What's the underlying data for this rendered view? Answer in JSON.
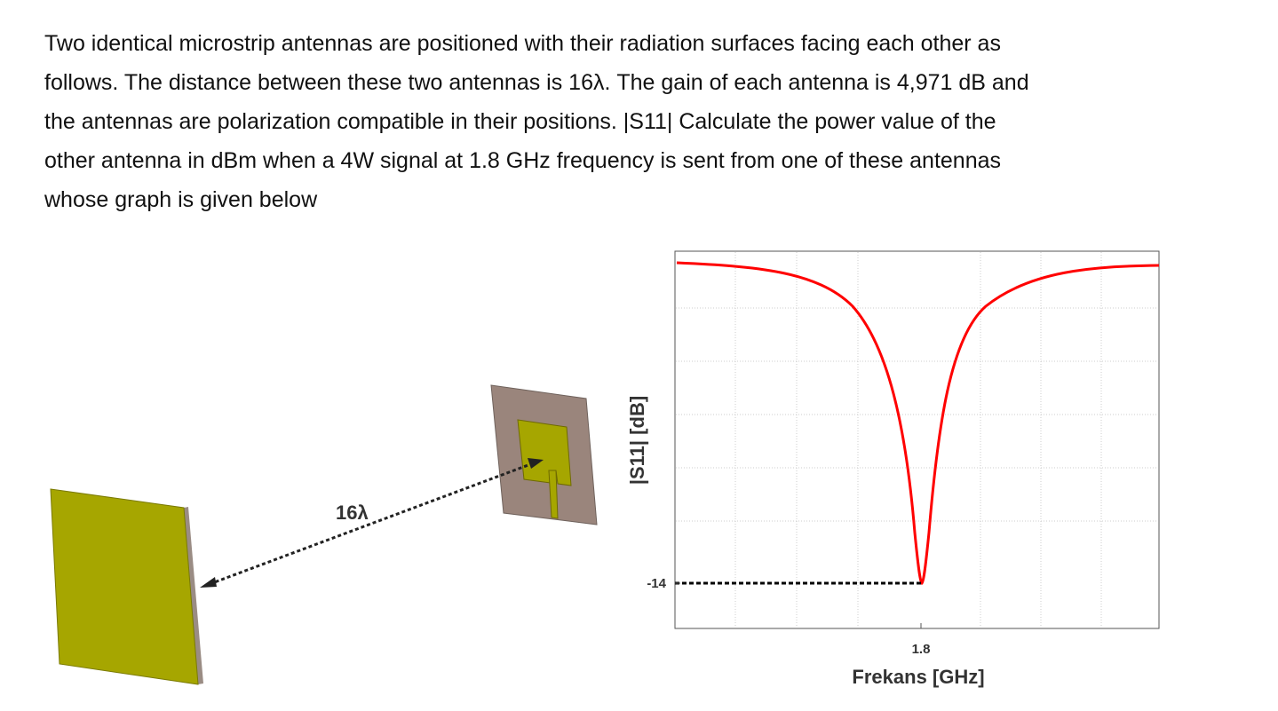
{
  "question": {
    "lines": [
      "Two identical microstrip antennas are positioned with their radiation surfaces facing each other as",
      "follows. The distance between these two antennas is 16λ. The gain of each antenna is 4,971 dB and",
      "the antennas are polarization compatible in their positions. |S11| Calculate the power value of the",
      "other antenna in dBm when a 4W signal at 1.8 GHz frequency is sent from one of these antennas",
      "whose graph is given below"
    ]
  },
  "figure": {
    "distance_label": "16λ",
    "plot": {
      "ylabel": "|S11| [dB]",
      "xlabel": "Frekans [GHz]",
      "color": "#ff0000",
      "xticks": [
        1.8
      ],
      "yticks": [
        -14
      ]
    }
  }
}
